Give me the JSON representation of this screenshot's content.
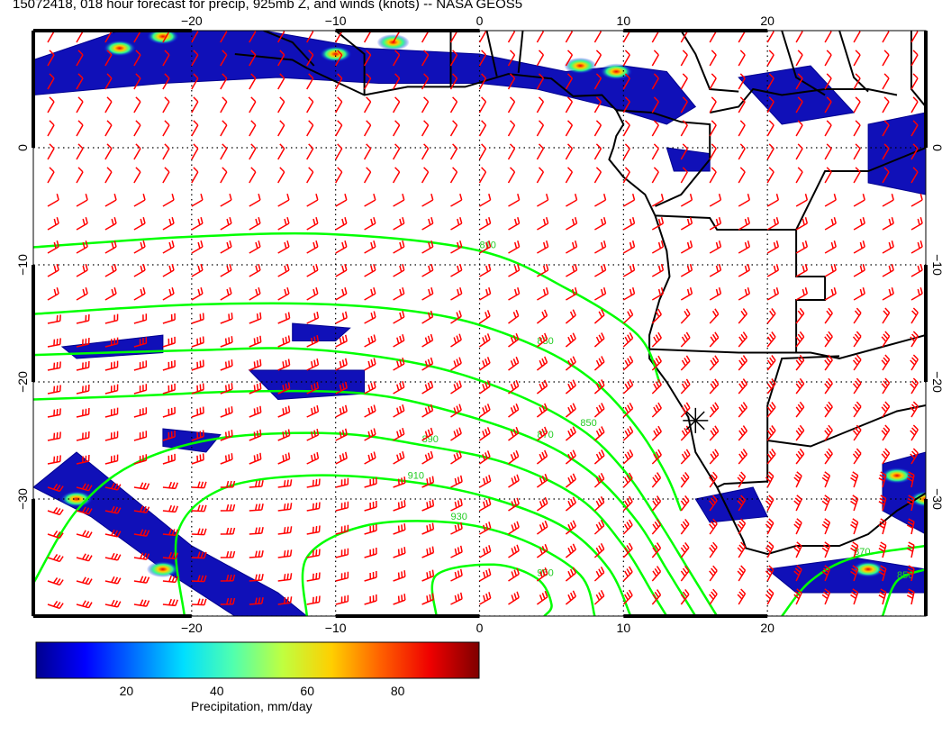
{
  "title": "15072418, 018 hour forecast for precip, 925mb Z, and winds (knots) -- NASA GEOS5",
  "map": {
    "lon_range": [
      -31,
      31
    ],
    "lat_range": [
      -40,
      10
    ],
    "lon_ticks": [
      -20,
      -10,
      0,
      10,
      20
    ],
    "lat_ticks": [
      0,
      -10,
      -20,
      -30
    ],
    "lon_tick_labels": [
      "−20",
      "−10",
      "0",
      "10",
      "20"
    ],
    "lat_tick_labels": [
      "0",
      "−10",
      "−20",
      "−30"
    ],
    "gridlines": "dotted",
    "height_contour_color": "#00ff00",
    "wind_barb_color": "#ff0000",
    "coastline_color": "#000000",
    "contour_labels": [
      "810",
      "830",
      "850",
      "870",
      "890",
      "910",
      "930",
      "950"
    ],
    "contours": [
      {
        "label": "810",
        "points": [
          [
            -31,
            -8.5
          ],
          [
            -20,
            -7.6
          ],
          [
            -10,
            -7.4
          ],
          [
            0,
            -8.8
          ],
          [
            6,
            -12
          ],
          [
            11,
            -16
          ],
          [
            12.5,
            -20
          ]
        ]
      },
      {
        "label": "830",
        "points": [
          [
            -31,
            -14.2
          ],
          [
            -20,
            -13.4
          ],
          [
            -10,
            -13.4
          ],
          [
            -2,
            -14.5
          ],
          [
            4,
            -17
          ],
          [
            8,
            -20
          ],
          [
            11,
            -24
          ],
          [
            13,
            -28
          ],
          [
            14,
            -31
          ]
        ]
      },
      {
        "label": "850",
        "points": [
          [
            -31,
            -17.7
          ],
          [
            -20,
            -17.3
          ],
          [
            -12,
            -17.2
          ],
          [
            -4,
            -18.5
          ],
          [
            2,
            -20.8
          ],
          [
            7,
            -24
          ],
          [
            10,
            -27.5
          ],
          [
            12.5,
            -32
          ],
          [
            14.5,
            -36
          ],
          [
            16.5,
            -40
          ]
        ]
      },
      {
        "label": "870",
        "points": [
          [
            -31,
            -21.5
          ],
          [
            -24,
            -21.2
          ],
          [
            -16,
            -20.8
          ],
          [
            -8,
            -21
          ],
          [
            -2,
            -22.5
          ],
          [
            4,
            -25
          ],
          [
            8,
            -28
          ],
          [
            11,
            -32
          ],
          [
            13,
            -36
          ],
          [
            15,
            -40
          ]
        ]
      },
      {
        "label": "890",
        "points": [
          [
            -31,
            -37.2
          ],
          [
            -28,
            -31
          ],
          [
            -24,
            -27
          ],
          [
            -18,
            -24.8
          ],
          [
            -10,
            -24.4
          ],
          [
            -4,
            -25.4
          ],
          [
            2,
            -27
          ],
          [
            7,
            -30
          ],
          [
            10,
            -34
          ],
          [
            12,
            -38
          ],
          [
            13,
            -40
          ]
        ]
      },
      {
        "label": "910",
        "points": [
          [
            -20.5,
            -40
          ],
          [
            -21,
            -33
          ],
          [
            -18,
            -29.2
          ],
          [
            -12,
            -28
          ],
          [
            -5,
            -28.5
          ],
          [
            1,
            -30
          ],
          [
            6,
            -32.5
          ],
          [
            9,
            -36
          ],
          [
            10.5,
            -40
          ]
        ]
      },
      {
        "label": "930",
        "points": [
          [
            -12,
            -40
          ],
          [
            -12,
            -35
          ],
          [
            -8,
            -32.3
          ],
          [
            -2,
            -32
          ],
          [
            3,
            -33.5
          ],
          [
            7,
            -36.5
          ],
          [
            8,
            -40
          ]
        ]
      },
      {
        "label": "950",
        "points": [
          [
            -3,
            -40
          ],
          [
            -3,
            -36.5
          ],
          [
            1,
            -35.6
          ],
          [
            4,
            -36.8
          ],
          [
            5,
            -39
          ],
          [
            4.5,
            -40
          ]
        ]
      },
      {
        "label": "870",
        "points": [
          [
            21,
            -40
          ],
          [
            23,
            -37
          ],
          [
            26,
            -35
          ],
          [
            31,
            -34
          ]
        ]
      },
      {
        "label": "850",
        "points": [
          [
            28,
            -40
          ],
          [
            29,
            -37
          ],
          [
            31,
            -36
          ]
        ]
      }
    ],
    "precip_regions": [
      {
        "points": [
          [
            -31,
            7.5
          ],
          [
            -25,
            10
          ],
          [
            -15,
            10
          ],
          [
            -8,
            8.5
          ],
          [
            0,
            8
          ],
          [
            6,
            6.5
          ],
          [
            10,
            7
          ],
          [
            13,
            6.5
          ],
          [
            15,
            3.5
          ],
          [
            13,
            2
          ],
          [
            9,
            3.5
          ],
          [
            4,
            5
          ],
          [
            0,
            5.5
          ],
          [
            -7,
            5.5
          ],
          [
            -14,
            6
          ],
          [
            -22,
            5.5
          ],
          [
            -31,
            4.5
          ]
        ]
      },
      {
        "points": [
          [
            18,
            6
          ],
          [
            23,
            7
          ],
          [
            26,
            3
          ],
          [
            21,
            2
          ]
        ]
      },
      {
        "points": [
          [
            13,
            0
          ],
          [
            16,
            -0.5
          ],
          [
            16,
            -2
          ],
          [
            13.5,
            -2
          ]
        ]
      },
      {
        "points": [
          [
            27,
            2
          ],
          [
            31,
            3
          ],
          [
            31,
            -4
          ],
          [
            27,
            -3
          ]
        ]
      },
      {
        "points": [
          [
            -28,
            -26
          ],
          [
            -25,
            -29
          ],
          [
            -20,
            -34
          ],
          [
            -14,
            -38
          ],
          [
            -12,
            -40
          ],
          [
            -17,
            -40
          ],
          [
            -22,
            -36
          ],
          [
            -27,
            -31.5
          ],
          [
            -31,
            -29
          ]
        ]
      },
      {
        "points": [
          [
            -16,
            -19
          ],
          [
            -8,
            -19
          ],
          [
            -8,
            -21
          ],
          [
            -14,
            -21.5
          ]
        ]
      },
      {
        "points": [
          [
            -29,
            -17
          ],
          [
            -22,
            -16
          ],
          [
            -22,
            -17.5
          ],
          [
            -28,
            -18
          ]
        ]
      },
      {
        "points": [
          [
            -13,
            -15
          ],
          [
            -9,
            -15.4
          ],
          [
            -10,
            -16.5
          ],
          [
            -13,
            -16.5
          ]
        ]
      },
      {
        "points": [
          [
            -22,
            -24
          ],
          [
            -18,
            -24.5
          ],
          [
            -19,
            -26
          ],
          [
            -22,
            -25.5
          ]
        ]
      },
      {
        "points": [
          [
            15,
            -30
          ],
          [
            19,
            -29
          ],
          [
            20,
            -31.5
          ],
          [
            16,
            -32
          ]
        ]
      },
      {
        "points": [
          [
            20,
            -36
          ],
          [
            26,
            -35
          ],
          [
            31,
            -36
          ],
          [
            31,
            -38
          ],
          [
            22,
            -38
          ]
        ]
      },
      {
        "points": [
          [
            28,
            -27
          ],
          [
            31,
            -26
          ],
          [
            31,
            -33
          ],
          [
            28,
            -31
          ]
        ]
      }
    ],
    "precip_hotspots": [
      [
        -25,
        8.5
      ],
      [
        -22,
        9.5
      ],
      [
        -10,
        8
      ],
      [
        -6,
        9
      ],
      [
        7,
        7
      ],
      [
        9.5,
        6.5
      ],
      [
        -28,
        -30
      ],
      [
        -22,
        -36
      ],
      [
        29,
        -28
      ],
      [
        31,
        -30
      ],
      [
        27,
        -36
      ]
    ],
    "coastline": [
      [
        -17,
        8
      ],
      [
        -13,
        7.5
      ],
      [
        -12,
        6.8
      ],
      [
        -8,
        4.5
      ],
      [
        -5,
        5.2
      ],
      [
        -1,
        5.2
      ],
      [
        2,
        6.3
      ],
      [
        5,
        5.9
      ],
      [
        6.5,
        4.4
      ],
      [
        8.5,
        4.5
      ],
      [
        9.5,
        3.2
      ],
      [
        10,
        2
      ],
      [
        9.5,
        1
      ],
      [
        9.3,
        0
      ],
      [
        9,
        -1
      ],
      [
        10,
        -2.5
      ],
      [
        11.5,
        -4
      ],
      [
        12.2,
        -5.8
      ],
      [
        13,
        -8.8
      ],
      [
        13.2,
        -11
      ],
      [
        12.5,
        -13
      ],
      [
        11.8,
        -16
      ],
      [
        11.8,
        -18
      ],
      [
        13,
        -20
      ],
      [
        14.5,
        -23
      ],
      [
        15,
        -26
      ],
      [
        16.5,
        -29
      ],
      [
        17.5,
        -31.5
      ],
      [
        18.3,
        -33.5
      ],
      [
        18.5,
        -34.2
      ],
      [
        20,
        -34.7
      ],
      [
        22,
        -34
      ],
      [
        25,
        -34
      ],
      [
        27,
        -33
      ],
      [
        29,
        -31
      ],
      [
        31,
        -29.5
      ]
    ],
    "borders": [
      [
        [
          12.2,
          -5.8
        ],
        [
          16,
          -6
        ],
        [
          16.5,
          -7
        ],
        [
          22,
          -7
        ],
        [
          22,
          -11
        ],
        [
          24,
          -11
        ],
        [
          24,
          -13
        ],
        [
          22,
          -13
        ],
        [
          22,
          -17.5
        ]
      ],
      [
        [
          11.8,
          -17.2
        ],
        [
          18,
          -17.5
        ],
        [
          23,
          -17.5
        ],
        [
          25,
          -18
        ],
        [
          28,
          -17
        ],
        [
          31,
          -16
        ]
      ],
      [
        [
          20,
          -22
        ],
        [
          20,
          -24.8
        ],
        [
          20,
          -28.5
        ],
        [
          17,
          -28.7
        ],
        [
          16.5,
          -29
        ]
      ],
      [
        [
          20,
          -22
        ],
        [
          21,
          -18
        ],
        [
          25,
          -17.8
        ]
      ],
      [
        [
          20,
          -25
        ],
        [
          23,
          -25.5
        ],
        [
          26,
          -24
        ],
        [
          29,
          -22.5
        ],
        [
          31,
          -22
        ]
      ],
      [
        [
          22,
          -7
        ],
        [
          24,
          -2
        ],
        [
          27,
          -2
        ],
        [
          29,
          -1
        ],
        [
          31,
          0
        ]
      ],
      [
        [
          16,
          3
        ],
        [
          18,
          3.5
        ],
        [
          19,
          5
        ],
        [
          21,
          4.5
        ],
        [
          24,
          5
        ],
        [
          27,
          5
        ],
        [
          29,
          4.5
        ]
      ],
      [
        [
          9.5,
          3.2
        ],
        [
          12,
          3
        ],
        [
          14,
          2.2
        ],
        [
          16,
          2
        ],
        [
          16,
          -1
        ],
        [
          14,
          -4
        ],
        [
          12.2,
          -5
        ]
      ],
      [
        [
          -2,
          5.2
        ],
        [
          -2,
          10
        ]
      ],
      [
        [
          1.2,
          6.1
        ],
        [
          0.5,
          10
        ]
      ],
      [
        [
          2.7,
          6.4
        ],
        [
          3,
          10
        ]
      ],
      [
        [
          -8,
          4.5
        ],
        [
          -8,
          8
        ],
        [
          -10,
          10
        ]
      ],
      [
        [
          -11.5,
          7
        ],
        [
          -13,
          9
        ],
        [
          -15,
          10
        ]
      ],
      [
        [
          14,
          10
        ],
        [
          15,
          8
        ],
        [
          16,
          5
        ],
        [
          18,
          4.8
        ]
      ],
      [
        [
          21,
          10
        ],
        [
          22,
          6
        ],
        [
          24,
          4.5
        ]
      ],
      [
        [
          25,
          10
        ],
        [
          26,
          6
        ],
        [
          27,
          4.8
        ]
      ],
      [
        [
          30,
          10
        ],
        [
          30,
          5
        ],
        [
          31,
          3.5
        ]
      ]
    ],
    "star_marker": {
      "lon": 15,
      "lat": -23.3
    },
    "wind_barb_spacing_degrees": 2
  },
  "colorbar": {
    "label": "Precipitation, mm/day",
    "min": 0,
    "max": 98,
    "ticks": [
      20,
      40,
      60,
      80
    ],
    "tick_labels": [
      "20",
      "40",
      "60",
      "80"
    ],
    "colors": [
      "#00008f",
      "#0000ff",
      "#006fff",
      "#00dfff",
      "#50ffaf",
      "#bfff40",
      "#ffcf00",
      "#ff6000",
      "#ef0000",
      "#7f0000"
    ]
  }
}
